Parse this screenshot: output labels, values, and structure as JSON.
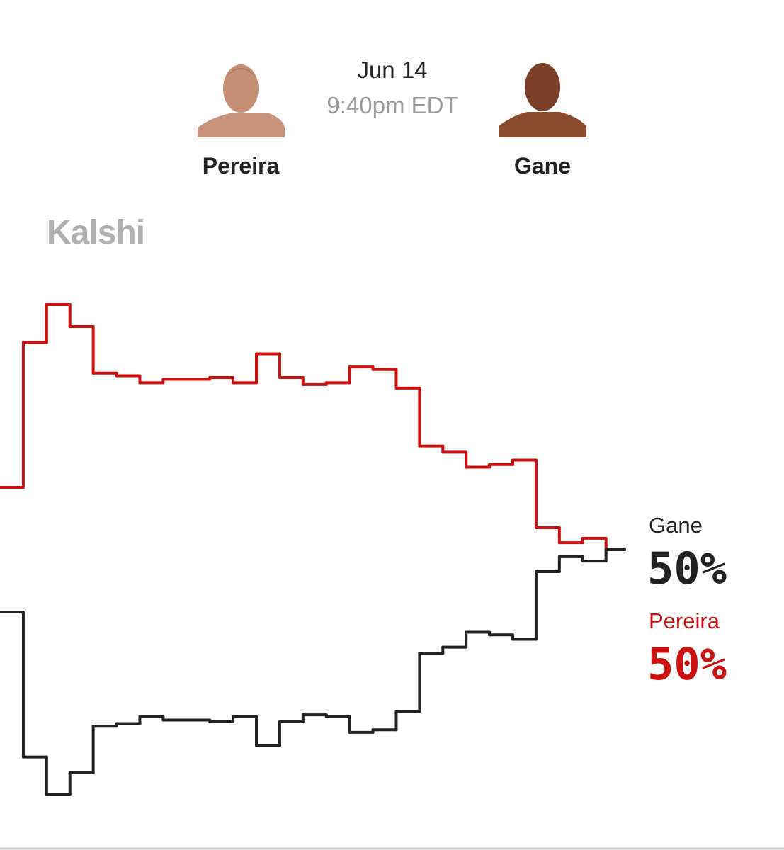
{
  "header": {
    "date": "Jun 14",
    "time": "9:40pm EDT",
    "fighters": [
      "Pereira",
      "Gane"
    ]
  },
  "brand": "Kalshi",
  "chart_data": {
    "type": "step",
    "series": [
      {
        "name": "Pereira",
        "color": "#cc1111",
        "values": [
          57.1,
          73.6,
          77.9,
          75.4,
          70.1,
          69.8,
          69.0,
          69.4,
          69.4,
          69.6,
          69.0,
          72.3,
          69.6,
          68.8,
          69.0,
          70.8,
          70.5,
          68.4,
          61.8,
          61.1,
          59.4,
          59.7,
          60.2,
          52.5,
          50.8,
          51.3,
          50
        ],
        "current_value": 50,
        "current_label": "50%"
      },
      {
        "name": "Gane",
        "color": "#222222",
        "values": [
          42.9,
          26.4,
          22.1,
          24.6,
          29.9,
          30.2,
          31.0,
          30.6,
          30.6,
          30.4,
          31.0,
          27.7,
          30.4,
          31.2,
          31.0,
          29.2,
          29.5,
          31.6,
          38.2,
          38.9,
          40.6,
          40.3,
          39.8,
          47.5,
          49.2,
          48.7,
          50
        ],
        "current_value": 50,
        "current_label": "50%"
      }
    ]
  }
}
